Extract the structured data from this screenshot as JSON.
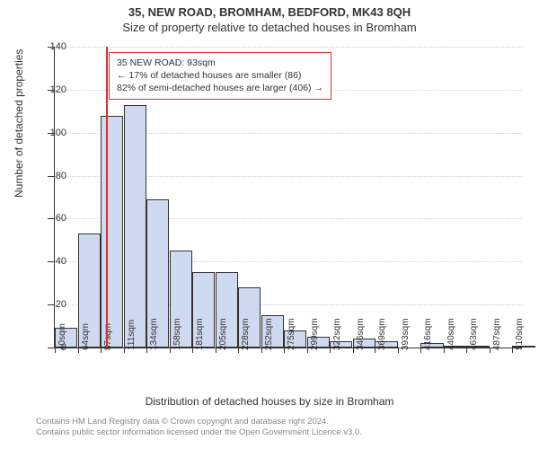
{
  "header": {
    "address": "35, NEW ROAD, BROMHAM, BEDFORD, MK43 8QH",
    "subtitle": "Size of property relative to detached houses in Bromham"
  },
  "chart": {
    "type": "histogram",
    "y_axis_title": "Number of detached properties",
    "x_axis_title": "Distribution of detached houses by size in Bromham",
    "ylim": [
      0,
      140
    ],
    "ytick_step": 20,
    "y_ticks": [
      0,
      20,
      40,
      60,
      80,
      100,
      120,
      140
    ],
    "x_min": 40,
    "x_max": 520,
    "x_ticks": [
      40,
      64,
      87,
      111,
      134,
      158,
      181,
      205,
      228,
      252,
      275,
      299,
      322,
      346,
      369,
      393,
      416,
      440,
      463,
      487,
      510
    ],
    "x_tick_suffix": "sqm",
    "bin_width_data": 23.5,
    "bars": [
      {
        "x": 40,
        "h": 9
      },
      {
        "x": 64,
        "h": 53
      },
      {
        "x": 87,
        "h": 108
      },
      {
        "x": 111,
        "h": 113
      },
      {
        "x": 134,
        "h": 69
      },
      {
        "x": 158,
        "h": 45
      },
      {
        "x": 181,
        "h": 35
      },
      {
        "x": 205,
        "h": 35
      },
      {
        "x": 228,
        "h": 28
      },
      {
        "x": 252,
        "h": 15
      },
      {
        "x": 275,
        "h": 8
      },
      {
        "x": 299,
        "h": 5
      },
      {
        "x": 322,
        "h": 3
      },
      {
        "x": 346,
        "h": 4
      },
      {
        "x": 369,
        "h": 3
      },
      {
        "x": 393,
        "h": 0
      },
      {
        "x": 416,
        "h": 2
      },
      {
        "x": 440,
        "h": 1
      },
      {
        "x": 463,
        "h": 1
      },
      {
        "x": 487,
        "h": 0
      },
      {
        "x": 510,
        "h": 1
      }
    ],
    "bar_fill": "#cfd9ef",
    "bar_border": "#333333",
    "grid_color": "#cccccc",
    "background": "#ffffff",
    "marker": {
      "value": 93,
      "color": "#d93030"
    },
    "annotation": {
      "line1": "35 NEW ROAD: 93sqm",
      "line2": "← 17% of detached houses are smaller (86)",
      "line3": "82% of semi-detached houses are larger (406) →",
      "border_color": "#d93030"
    }
  },
  "footer": {
    "line1": "Contains HM Land Registry data © Crown copyright and database right 2024.",
    "line2": "Contains public sector information licensed under the Open Government Licence v3.0."
  }
}
